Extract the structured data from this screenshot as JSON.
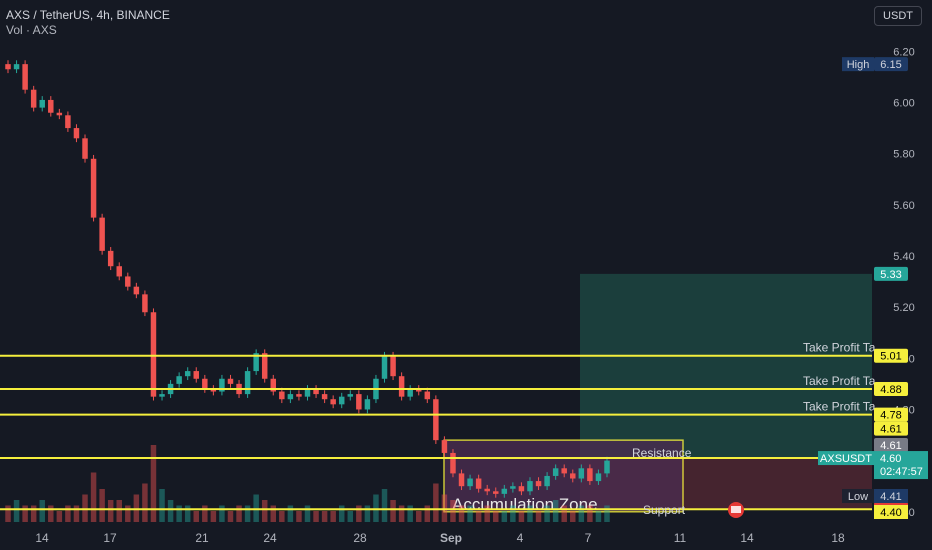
{
  "legend": {
    "symbol_line": "AXS / TetherUS, 4h, BINANCE",
    "volume_line": "Vol · AXS"
  },
  "currency_button": "USDT",
  "colors": {
    "background": "#151923",
    "up": "#26a69a",
    "down": "#ef5350",
    "level_line": "#f5ef3d",
    "zone_fill": "#4a2c4f",
    "tp_fill": "#1d4b45",
    "axis_text": "#b2b5be"
  },
  "chart_data": {
    "type": "candlestick",
    "symbol": "AXSUSDT",
    "x_tick_labels": [
      "14",
      "17",
      "21",
      "24",
      "28",
      "Sep",
      "4",
      "7",
      "11",
      "14",
      "18"
    ],
    "y_ticks": [
      4.4,
      4.6,
      4.8,
      5.0,
      5.2,
      5.4,
      5.6,
      5.8,
      6.0,
      6.2
    ],
    "y_range": [
      4.36,
      6.26
    ],
    "grid": false,
    "horizontal_lines": [
      {
        "price": 5.01,
        "label": "Take Profit Ta",
        "badge": "5.01"
      },
      {
        "price": 4.88,
        "label": "Take Profit Ta",
        "badge": "4.88"
      },
      {
        "price": 4.78,
        "label": "Take Profit Ta",
        "badge": "4.78"
      },
      {
        "price": 4.61,
        "label": "Resistance",
        "badge": "4.61"
      },
      {
        "price": 4.41,
        "label": "Support",
        "badge": "4.41"
      }
    ],
    "zone": {
      "label": "Accumulation Zone",
      "top": 4.68,
      "bottom": 4.4
    },
    "take_profit_area": {
      "top": 5.33,
      "bottom": 4.61
    },
    "high": {
      "label": "High",
      "value": "6.15"
    },
    "low": {
      "label": "Low",
      "value": "4.41"
    },
    "last": {
      "label": "AXSUSDT",
      "value": "4.60",
      "countdown": "02:47:57"
    },
    "extra_price_badges": [
      "5.33",
      "4.61",
      "4.40"
    ],
    "price_path": [
      6.13,
      6.15,
      6.05,
      5.98,
      6.01,
      5.96,
      5.95,
      5.9,
      5.86,
      5.78,
      5.55,
      5.42,
      5.36,
      5.32,
      5.28,
      5.25,
      5.18,
      4.85,
      4.86,
      4.9,
      4.93,
      4.95,
      4.92,
      4.88,
      4.87,
      4.92,
      4.9,
      4.86,
      4.95,
      5.02,
      4.92,
      4.87,
      4.84,
      4.86,
      4.85,
      4.88,
      4.86,
      4.84,
      4.82,
      4.85,
      4.86,
      4.8,
      4.84,
      4.92,
      5.01,
      4.93,
      4.85,
      4.88,
      4.87,
      4.84,
      4.68,
      4.63,
      4.55,
      4.5,
      4.53,
      4.49,
      4.48,
      4.47,
      4.49,
      4.5,
      4.48,
      4.52,
      4.5,
      4.54,
      4.57,
      4.55,
      4.53,
      4.57,
      4.52,
      4.55,
      4.6
    ],
    "volumes": [
      3,
      4,
      3,
      3,
      4,
      3,
      2,
      3,
      3,
      5,
      9,
      6,
      4,
      4,
      3,
      5,
      7,
      14,
      6,
      4,
      3,
      3,
      2,
      3,
      2,
      3,
      2,
      3,
      3,
      5,
      4,
      3,
      2,
      3,
      2,
      3,
      2,
      2,
      2,
      3,
      2,
      3,
      3,
      5,
      6,
      4,
      3,
      3,
      2,
      3,
      7,
      5,
      4,
      3,
      3,
      2,
      3,
      2,
      2,
      3,
      2,
      3,
      2,
      3,
      4,
      3,
      2,
      3,
      3,
      2,
      3
    ]
  }
}
